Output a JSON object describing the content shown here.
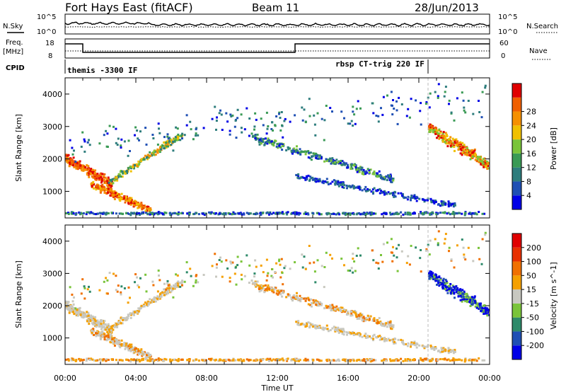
{
  "header": {
    "station": "Fort Hays East (fitACF)",
    "beam": "Beam 11",
    "date": "28/Jun/2013"
  },
  "noise_panel": {
    "left_label": "N.Sky",
    "right_label": "N.Search",
    "left_ticks": [
      "10^5",
      "10^0"
    ],
    "right_ticks": [
      "10^5",
      "10^0"
    ]
  },
  "freq_panel": {
    "left_label_1": "Freq.",
    "left_label_2": "[MHz]",
    "right_label": "Nave",
    "left_ticks": [
      "18",
      "8"
    ],
    "right_ticks": [
      "60",
      "0"
    ]
  },
  "cpid_panel": {
    "label": "CPID",
    "segments": [
      {
        "text": "themis -3300 IF",
        "start_hour": 0,
        "end_hour": 20.8
      },
      {
        "text": "rbsp CT-trig 220 IF",
        "start_hour": 13.0,
        "end_hour": 20.8
      }
    ]
  },
  "chart_data": [
    {
      "type": "heatmap",
      "name": "power",
      "ylabel": "Slant Range [km]",
      "yticks": [
        1000,
        2000,
        3000,
        4000
      ],
      "ylim": [
        180,
        4500
      ],
      "colorbar": {
        "label": "Power [dB]",
        "ticks": [
          4,
          8,
          12,
          16,
          20,
          24,
          28
        ],
        "colors": [
          "#0000e6",
          "#1f4fb4",
          "#2e7d7d",
          "#3a9a55",
          "#7ac43a",
          "#f0c000",
          "#f59000",
          "#f06000",
          "#e00000"
        ]
      }
    },
    {
      "type": "heatmap",
      "name": "velocity",
      "ylabel": "Slant Range [km]",
      "yticks": [
        1000,
        2000,
        3000,
        4000
      ],
      "ylim": [
        180,
        4500
      ],
      "colorbar": {
        "label": "Velocity [m s^-1]",
        "ticks": [
          200,
          100,
          50,
          15,
          -15,
          -50,
          -100,
          -200
        ],
        "colors": [
          "#0000e6",
          "#1f4fb4",
          "#2e8a6a",
          "#7ac43a",
          "#c8c8c0",
          "#f5a000",
          "#f07000",
          "#e83000",
          "#e00000"
        ]
      }
    }
  ],
  "time_axis": {
    "ticks": [
      "00:00",
      "04:00",
      "08:00",
      "12:00",
      "16:00",
      "20:00",
      "00:00"
    ],
    "xlabel": "Time UT",
    "range_hours": [
      0,
      24
    ]
  }
}
